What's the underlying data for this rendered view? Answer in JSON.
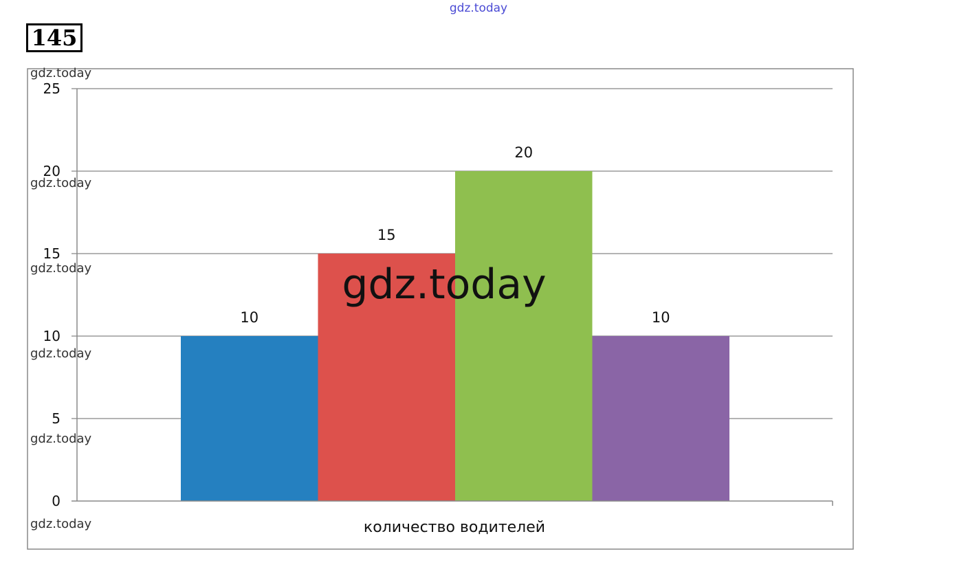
{
  "watermark": "gdz.today",
  "problem_number": "145",
  "chart_data": {
    "type": "bar",
    "categories": [
      "",
      "",
      "",
      ""
    ],
    "values": [
      10,
      15,
      20,
      10
    ],
    "colors": [
      "#2580c0",
      "#dd514c",
      "#8fbf4f",
      "#8a65a6"
    ],
    "data_labels": [
      "10",
      "15",
      "20",
      "10"
    ],
    "title": "",
    "xlabel": "количество водителей",
    "ylabel": "",
    "ylim": [
      0,
      25
    ],
    "yticks": [
      "0",
      "5",
      "10",
      "15",
      "20",
      "25"
    ],
    "grid": true,
    "legend": "none"
  }
}
